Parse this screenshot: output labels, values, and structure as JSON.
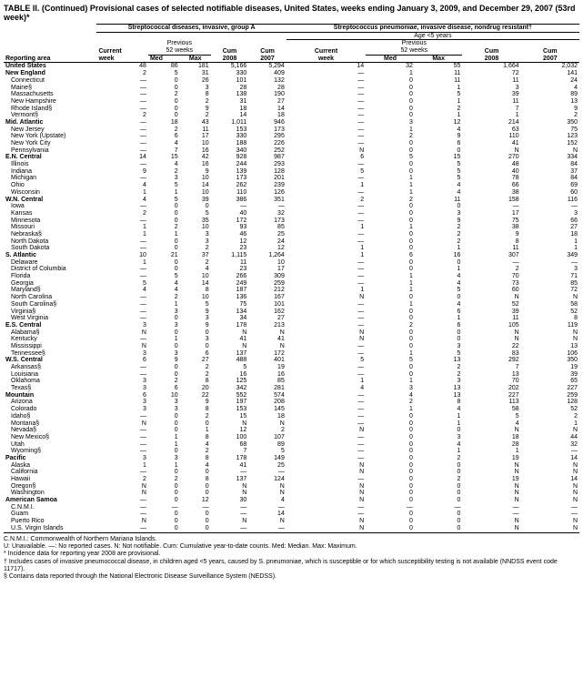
{
  "title": "TABLE II. (Continued) Provisional cases of selected notifiable diseases, United States, weeks ending January 3, 2009, and December 29, 2007 (53rd week)*",
  "group1_header": "Streptococcal diseases, invasive, group A",
  "group2_header": "Streptococcus pneumoniae, invasive disease, nondrug resistant†",
  "group2_sub": "Age <5 years",
  "prev_weeks": "Previous",
  "prev_weeks2": "52 weeks",
  "cols": {
    "area": "Reporting area",
    "cur": "Current",
    "week": "week",
    "med": "Med",
    "max": "Max",
    "cum": "Cum",
    "y2008": "2008",
    "y2007": "2007"
  },
  "rows": [
    {
      "t": "r",
      "n": "United States",
      "v": [
        "48",
        "86",
        "181",
        "5,166",
        "5,294",
        "14",
        "32",
        "55",
        "1,664",
        "2,032"
      ]
    },
    {
      "t": "r",
      "n": "New England",
      "v": [
        "2",
        "5",
        "31",
        "330",
        "409",
        "—",
        "1",
        "11",
        "72",
        "141"
      ]
    },
    {
      "t": "s",
      "n": "Connecticut",
      "v": [
        "—",
        "0",
        "26",
        "101",
        "132",
        "—",
        "0",
        "11",
        "11",
        "24"
      ]
    },
    {
      "t": "s",
      "n": "Maine§",
      "v": [
        "—",
        "0",
        "3",
        "28",
        "28",
        "—",
        "0",
        "1",
        "3",
        "4"
      ]
    },
    {
      "t": "s",
      "n": "Massachusetts",
      "v": [
        "—",
        "2",
        "8",
        "138",
        "190",
        "—",
        "0",
        "5",
        "39",
        "89"
      ]
    },
    {
      "t": "s",
      "n": "New Hampshire",
      "v": [
        "—",
        "0",
        "2",
        "31",
        "27",
        "—",
        "0",
        "1",
        "11",
        "13"
      ]
    },
    {
      "t": "s",
      "n": "Rhode Island§",
      "v": [
        "—",
        "0",
        "9",
        "18",
        "14",
        "—",
        "0",
        "2",
        "7",
        "9"
      ]
    },
    {
      "t": "s",
      "n": "Vermont§",
      "v": [
        "2",
        "0",
        "2",
        "14",
        "18",
        "—",
        "0",
        "1",
        "1",
        "2"
      ]
    },
    {
      "t": "r",
      "n": "Mid. Atlantic",
      "v": [
        "—",
        "18",
        "43",
        "1,011",
        "946",
        "—",
        "3",
        "12",
        "214",
        "350"
      ]
    },
    {
      "t": "s",
      "n": "New Jersey",
      "v": [
        "—",
        "2",
        "11",
        "153",
        "173",
        "—",
        "1",
        "4",
        "63",
        "75"
      ]
    },
    {
      "t": "s",
      "n": "New York (Upstate)",
      "v": [
        "—",
        "6",
        "17",
        "330",
        "295",
        "—",
        "2",
        "9",
        "110",
        "123"
      ]
    },
    {
      "t": "s",
      "n": "New York City",
      "v": [
        "—",
        "4",
        "10",
        "188",
        "226",
        "—",
        "0",
        "6",
        "41",
        "152"
      ]
    },
    {
      "t": "s",
      "n": "Pennsylvania",
      "v": [
        "—",
        "7",
        "16",
        "340",
        "252",
        "N",
        "0",
        "0",
        "N",
        "N"
      ]
    },
    {
      "t": "r",
      "n": "E.N. Central",
      "v": [
        "14",
        "15",
        "42",
        "928",
        "987",
        "6",
        "5",
        "15",
        "270",
        "334"
      ]
    },
    {
      "t": "s",
      "n": "Illinois",
      "v": [
        "—",
        "4",
        "16",
        "244",
        "293",
        "—",
        "0",
        "5",
        "48",
        "84"
      ]
    },
    {
      "t": "s",
      "n": "Indiana",
      "v": [
        "9",
        "2",
        "9",
        "139",
        "128",
        "5",
        "0",
        "5",
        "40",
        "37"
      ]
    },
    {
      "t": "s",
      "n": "Michigan",
      "v": [
        "—",
        "3",
        "10",
        "173",
        "201",
        "—",
        "1",
        "5",
        "78",
        "84"
      ]
    },
    {
      "t": "s",
      "n": "Ohio",
      "v": [
        "4",
        "5",
        "14",
        "262",
        "239",
        "1",
        "1",
        "4",
        "66",
        "69"
      ]
    },
    {
      "t": "s",
      "n": "Wisconsin",
      "v": [
        "1",
        "1",
        "10",
        "110",
        "126",
        "—",
        "1",
        "4",
        "38",
        "60"
      ]
    },
    {
      "t": "r",
      "n": "W.N. Central",
      "v": [
        "4",
        "5",
        "39",
        "386",
        "351",
        "2",
        "2",
        "11",
        "158",
        "116"
      ]
    },
    {
      "t": "s",
      "n": "Iowa",
      "v": [
        "—",
        "0",
        "0",
        "—",
        "—",
        "—",
        "0",
        "0",
        "—",
        "—"
      ]
    },
    {
      "t": "s",
      "n": "Kansas",
      "v": [
        "2",
        "0",
        "5",
        "40",
        "32",
        "—",
        "0",
        "3",
        "17",
        "3"
      ]
    },
    {
      "t": "s",
      "n": "Minnesota",
      "v": [
        "—",
        "0",
        "35",
        "172",
        "173",
        "—",
        "0",
        "9",
        "75",
        "66"
      ]
    },
    {
      "t": "s",
      "n": "Missouri",
      "v": [
        "1",
        "2",
        "10",
        "93",
        "85",
        "1",
        "1",
        "2",
        "38",
        "27"
      ]
    },
    {
      "t": "s",
      "n": "Nebraska§",
      "v": [
        "1",
        "1",
        "3",
        "46",
        "25",
        "—",
        "0",
        "2",
        "9",
        "18"
      ]
    },
    {
      "t": "s",
      "n": "North Dakota",
      "v": [
        "—",
        "0",
        "3",
        "12",
        "24",
        "—",
        "0",
        "2",
        "8",
        "1"
      ]
    },
    {
      "t": "s",
      "n": "South Dakota",
      "v": [
        "—",
        "0",
        "2",
        "23",
        "12",
        "1",
        "0",
        "1",
        "11",
        "1"
      ]
    },
    {
      "t": "r",
      "n": "S. Atlantic",
      "v": [
        "10",
        "21",
        "37",
        "1,115",
        "1,264",
        "1",
        "6",
        "16",
        "307",
        "349"
      ]
    },
    {
      "t": "s",
      "n": "Delaware",
      "v": [
        "1",
        "0",
        "2",
        "11",
        "10",
        "—",
        "0",
        "0",
        "—",
        "—"
      ]
    },
    {
      "t": "s",
      "n": "District of Columbia",
      "v": [
        "—",
        "0",
        "4",
        "23",
        "17",
        "—",
        "0",
        "1",
        "2",
        "3"
      ]
    },
    {
      "t": "s",
      "n": "Florida",
      "v": [
        "—",
        "5",
        "10",
        "266",
        "309",
        "—",
        "1",
        "4",
        "70",
        "71"
      ]
    },
    {
      "t": "s",
      "n": "Georgia",
      "v": [
        "5",
        "4",
        "14",
        "249",
        "259",
        "—",
        "1",
        "4",
        "73",
        "85"
      ]
    },
    {
      "t": "s",
      "n": "Maryland§",
      "v": [
        "4",
        "4",
        "8",
        "187",
        "212",
        "1",
        "1",
        "5",
        "60",
        "72"
      ]
    },
    {
      "t": "s",
      "n": "North Carolina",
      "v": [
        "—",
        "2",
        "10",
        "136",
        "167",
        "N",
        "0",
        "0",
        "N",
        "N"
      ]
    },
    {
      "t": "s",
      "n": "South Carolina§",
      "v": [
        "—",
        "1",
        "5",
        "75",
        "101",
        "—",
        "1",
        "4",
        "52",
        "58"
      ]
    },
    {
      "t": "s",
      "n": "Virginia§",
      "v": [
        "—",
        "3",
        "9",
        "134",
        "162",
        "—",
        "0",
        "6",
        "39",
        "52"
      ]
    },
    {
      "t": "s",
      "n": "West Virginia",
      "v": [
        "—",
        "0",
        "3",
        "34",
        "27",
        "—",
        "0",
        "1",
        "11",
        "8"
      ]
    },
    {
      "t": "r",
      "n": "E.S. Central",
      "v": [
        "3",
        "3",
        "9",
        "178",
        "213",
        "—",
        "2",
        "6",
        "105",
        "119"
      ]
    },
    {
      "t": "s",
      "n": "Alabama§",
      "v": [
        "N",
        "0",
        "0",
        "N",
        "N",
        "N",
        "0",
        "0",
        "N",
        "N"
      ]
    },
    {
      "t": "s",
      "n": "Kentucky",
      "v": [
        "—",
        "1",
        "3",
        "41",
        "41",
        "N",
        "0",
        "0",
        "N",
        "N"
      ]
    },
    {
      "t": "s",
      "n": "Mississippi",
      "v": [
        "N",
        "0",
        "0",
        "N",
        "N",
        "—",
        "0",
        "3",
        "22",
        "13"
      ]
    },
    {
      "t": "s",
      "n": "Tennessee§",
      "v": [
        "3",
        "3",
        "6",
        "137",
        "172",
        "—",
        "1",
        "5",
        "83",
        "106"
      ]
    },
    {
      "t": "r",
      "n": "W.S. Central",
      "v": [
        "6",
        "9",
        "27",
        "488",
        "401",
        "5",
        "5",
        "13",
        "292",
        "350"
      ]
    },
    {
      "t": "s",
      "n": "Arkansas§",
      "v": [
        "—",
        "0",
        "2",
        "5",
        "19",
        "—",
        "0",
        "2",
        "7",
        "19"
      ]
    },
    {
      "t": "s",
      "n": "Louisiana",
      "v": [
        "—",
        "0",
        "2",
        "16",
        "16",
        "—",
        "0",
        "2",
        "13",
        "39"
      ]
    },
    {
      "t": "s",
      "n": "Oklahoma",
      "v": [
        "3",
        "2",
        "8",
        "125",
        "85",
        "1",
        "1",
        "3",
        "70",
        "65"
      ]
    },
    {
      "t": "s",
      "n": "Texas§",
      "v": [
        "3",
        "6",
        "20",
        "342",
        "281",
        "4",
        "3",
        "13",
        "202",
        "227"
      ]
    },
    {
      "t": "r",
      "n": "Mountain",
      "v": [
        "6",
        "10",
        "22",
        "552",
        "574",
        "—",
        "4",
        "13",
        "227",
        "259"
      ]
    },
    {
      "t": "s",
      "n": "Arizona",
      "v": [
        "3",
        "3",
        "9",
        "197",
        "208",
        "—",
        "2",
        "8",
        "113",
        "128"
      ]
    },
    {
      "t": "s",
      "n": "Colorado",
      "v": [
        "3",
        "3",
        "8",
        "153",
        "145",
        "—",
        "1",
        "4",
        "58",
        "52"
      ]
    },
    {
      "t": "s",
      "n": "Idaho§",
      "v": [
        "—",
        "0",
        "2",
        "15",
        "18",
        "—",
        "0",
        "1",
        "5",
        "2"
      ]
    },
    {
      "t": "s",
      "n": "Montana§",
      "v": [
        "N",
        "0",
        "0",
        "N",
        "N",
        "—",
        "0",
        "1",
        "4",
        "1"
      ]
    },
    {
      "t": "s",
      "n": "Nevada§",
      "v": [
        "—",
        "0",
        "1",
        "12",
        "2",
        "N",
        "0",
        "0",
        "N",
        "N"
      ]
    },
    {
      "t": "s",
      "n": "New Mexico§",
      "v": [
        "—",
        "1",
        "8",
        "100",
        "107",
        "—",
        "0",
        "3",
        "18",
        "44"
      ]
    },
    {
      "t": "s",
      "n": "Utah",
      "v": [
        "—",
        "1",
        "4",
        "68",
        "89",
        "—",
        "0",
        "4",
        "28",
        "32"
      ]
    },
    {
      "t": "s",
      "n": "Wyoming§",
      "v": [
        "—",
        "0",
        "2",
        "7",
        "5",
        "—",
        "0",
        "1",
        "1",
        "—"
      ]
    },
    {
      "t": "r",
      "n": "Pacific",
      "v": [
        "3",
        "3",
        "8",
        "178",
        "149",
        "—",
        "0",
        "2",
        "19",
        "14"
      ]
    },
    {
      "t": "s",
      "n": "Alaska",
      "v": [
        "1",
        "1",
        "4",
        "41",
        "25",
        "N",
        "0",
        "0",
        "N",
        "N"
      ]
    },
    {
      "t": "s",
      "n": "California",
      "v": [
        "—",
        "0",
        "0",
        "—",
        "—",
        "N",
        "0",
        "0",
        "N",
        "N"
      ]
    },
    {
      "t": "s",
      "n": "Hawaii",
      "v": [
        "2",
        "2",
        "8",
        "137",
        "124",
        "—",
        "0",
        "2",
        "19",
        "14"
      ]
    },
    {
      "t": "s",
      "n": "Oregon§",
      "v": [
        "N",
        "0",
        "0",
        "N",
        "N",
        "N",
        "0",
        "0",
        "N",
        "N"
      ]
    },
    {
      "t": "s",
      "n": "Washington",
      "v": [
        "N",
        "0",
        "0",
        "N",
        "N",
        "N",
        "0",
        "0",
        "N",
        "N"
      ]
    },
    {
      "t": "r",
      "n": "American Samoa",
      "v": [
        "—",
        "0",
        "12",
        "30",
        "4",
        "N",
        "0",
        "0",
        "N",
        "N"
      ]
    },
    {
      "t": "s",
      "n": "C.N.M.I.",
      "v": [
        "—",
        "—",
        "—",
        "—",
        "—",
        "—",
        "—",
        "—",
        "—",
        "—"
      ]
    },
    {
      "t": "s",
      "n": "Guam",
      "v": [
        "—",
        "0",
        "0",
        "—",
        "14",
        "—",
        "0",
        "0",
        "—",
        "—"
      ]
    },
    {
      "t": "s",
      "n": "Puerto Rico",
      "v": [
        "N",
        "0",
        "0",
        "N",
        "N",
        "N",
        "0",
        "0",
        "N",
        "N"
      ]
    },
    {
      "t": "s",
      "n": "U.S. Virgin Islands",
      "v": [
        "—",
        "0",
        "0",
        "—",
        "—",
        "N",
        "0",
        "0",
        "N",
        "N"
      ]
    }
  ],
  "footnotes": [
    "C.N.M.I.: Commonwealth of Northern Mariana Islands.",
    "U: Unavailable.   —: No reported cases.   N: Not notifiable.   Cum: Cumulative year-to-date counts.   Med: Median.   Max: Maximum.",
    "* Incidence data for reporting year 2008 are provisional.",
    "† Includes cases of invasive pneumococcal disease, in children aged <5 years, caused by S. pneumoniae, which is susceptible or for which susceptibility testing is not available (NNDSS event code 11717).",
    "§ Contains data reported through the National Electronic Disease Surveillance System (NEDSS)."
  ]
}
